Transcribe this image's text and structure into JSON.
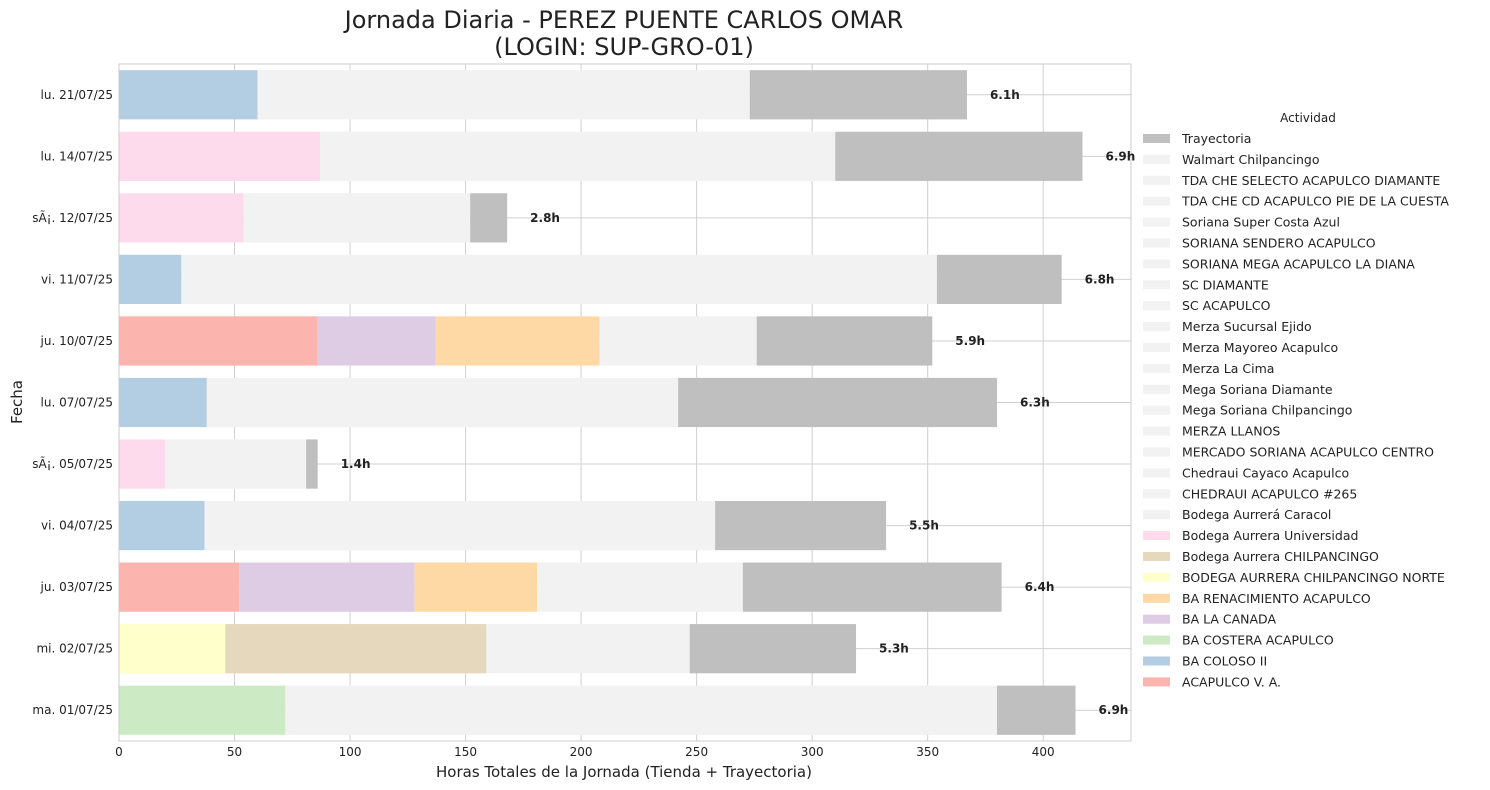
{
  "chart_data": {
    "type": "bar",
    "orientation": "horizontal",
    "stacked": true,
    "title": "Jornada Diaria - PEREZ PUENTE CARLOS OMAR",
    "subtitle": "(LOGIN: SUP-GRO-01)",
    "xlabel": "Horas Totales de la Jornada (Tienda + Trayectoria)",
    "ylabel": "Fecha",
    "xlim": [
      0,
      438
    ],
    "xticks": [
      0,
      50,
      100,
      150,
      200,
      250,
      300,
      350,
      400
    ],
    "grid": true,
    "legend_title": "Actividad",
    "legend_position": "right",
    "categories": [
      "ma. 01/07/25",
      "mi. 02/07/25",
      "ju. 03/07/25",
      "vi. 04/07/25",
      "sÃ¡. 05/07/25",
      "lu. 07/07/25",
      "ju. 10/07/25",
      "vi. 11/07/25",
      "sÃ¡. 12/07/25",
      "lu. 14/07/25",
      "lu. 21/07/25"
    ],
    "totals": [
      "6.9h",
      "5.3h",
      "6.4h",
      "5.5h",
      "1.4h",
      "6.3h",
      "5.9h",
      "6.8h",
      "2.8h",
      "6.9h",
      "6.1h"
    ],
    "segments": [
      [
        {
          "name": "BA COSTERA ACAPULCO",
          "value": 72
        },
        {
          "name": "Walmart Chilpancingo",
          "value": 308
        },
        {
          "name": "Trayectoria",
          "value": 34
        }
      ],
      [
        {
          "name": "BODEGA AURRERA CHILPANCINGO NORTE",
          "value": 46
        },
        {
          "name": "Bodega Aurrera CHILPANCINGO",
          "value": 113
        },
        {
          "name": "Walmart Chilpancingo",
          "value": 88
        },
        {
          "name": "Trayectoria",
          "value": 72
        }
      ],
      [
        {
          "name": "ACAPULCO V. A.",
          "value": 52
        },
        {
          "name": "BA LA CANADA",
          "value": 76
        },
        {
          "name": "BA RENACIMIENTO ACAPULCO",
          "value": 53
        },
        {
          "name": "Walmart Chilpancingo",
          "value": 89
        },
        {
          "name": "Trayectoria",
          "value": 112
        }
      ],
      [
        {
          "name": "BA COLOSO II",
          "value": 37
        },
        {
          "name": "Walmart Chilpancingo",
          "value": 221
        },
        {
          "name": "Trayectoria",
          "value": 74
        }
      ],
      [
        {
          "name": "Bodega Aurrera Universidad",
          "value": 20
        },
        {
          "name": "Walmart Chilpancingo",
          "value": 61
        },
        {
          "name": "Trayectoria",
          "value": 5
        }
      ],
      [
        {
          "name": "BA COLOSO II",
          "value": 38
        },
        {
          "name": "Walmart Chilpancingo",
          "value": 204
        },
        {
          "name": "Trayectoria",
          "value": 138
        }
      ],
      [
        {
          "name": "ACAPULCO V. A.",
          "value": 86
        },
        {
          "name": "BA LA CANADA",
          "value": 51
        },
        {
          "name": "BA RENACIMIENTO ACAPULCO",
          "value": 71
        },
        {
          "name": "Walmart Chilpancingo",
          "value": 68
        },
        {
          "name": "Trayectoria",
          "value": 76
        }
      ],
      [
        {
          "name": "BA COLOSO II",
          "value": 27
        },
        {
          "name": "Walmart Chilpancingo",
          "value": 327
        },
        {
          "name": "Trayectoria",
          "value": 54
        }
      ],
      [
        {
          "name": "Bodega Aurrera Universidad",
          "value": 54
        },
        {
          "name": "Walmart Chilpancingo",
          "value": 98
        },
        {
          "name": "Trayectoria",
          "value": 16
        }
      ],
      [
        {
          "name": "Bodega Aurrera Universidad",
          "value": 87
        },
        {
          "name": "Walmart Chilpancingo",
          "value": 223
        },
        {
          "name": "Trayectoria",
          "value": 107
        }
      ],
      [
        {
          "name": "BA COLOSO II",
          "value": 60
        },
        {
          "name": "Walmart Chilpancingo",
          "value": 213
        },
        {
          "name": "Trayectoria",
          "value": 94
        }
      ]
    ],
    "legend": [
      {
        "name": "Trayectoria",
        "color": "#bfbfbf"
      },
      {
        "name": "Walmart Chilpancingo",
        "color": "#f2f2f2"
      },
      {
        "name": "TDA CHE SELECTO ACAPULCO DIAMANTE",
        "color": "#f2f2f2"
      },
      {
        "name": "TDA CHE CD ACAPULCO PIE DE LA CUESTA",
        "color": "#f2f2f2"
      },
      {
        "name": "Soriana Super Costa Azul",
        "color": "#f2f2f2"
      },
      {
        "name": "SORIANA SENDERO ACAPULCO",
        "color": "#f2f2f2"
      },
      {
        "name": "SORIANA MEGA ACAPULCO LA DIANA",
        "color": "#f2f2f2"
      },
      {
        "name": "SC DIAMANTE",
        "color": "#f2f2f2"
      },
      {
        "name": "SC ACAPULCO",
        "color": "#f2f2f2"
      },
      {
        "name": "Merza Sucursal Ejido",
        "color": "#f2f2f2"
      },
      {
        "name": "Merza Mayoreo Acapulco",
        "color": "#f2f2f2"
      },
      {
        "name": "Merza La Cima",
        "color": "#f2f2f2"
      },
      {
        "name": "Mega Soriana Diamante",
        "color": "#f2f2f2"
      },
      {
        "name": "Mega Soriana Chilpancingo",
        "color": "#f2f2f2"
      },
      {
        "name": "MERZA LLANOS",
        "color": "#f2f2f2"
      },
      {
        "name": "MERCADO SORIANA ACAPULCO CENTRO",
        "color": "#f2f2f2"
      },
      {
        "name": "Chedraui Cayaco Acapulco",
        "color": "#f2f2f2"
      },
      {
        "name": "CHEDRAUI ACAPULCO #265",
        "color": "#f2f2f2"
      },
      {
        "name": "Bodega Aurrerá Caracol",
        "color": "#f2f2f2"
      },
      {
        "name": "Bodega Aurrera Universidad",
        "color": "#fddaec"
      },
      {
        "name": "Bodega Aurrera CHILPANCINGO",
        "color": "#e5d8bd"
      },
      {
        "name": "BODEGA AURRERA CHILPANCINGO NORTE",
        "color": "#ffffcc"
      },
      {
        "name": "BA RENACIMIENTO ACAPULCO",
        "color": "#fed9a6"
      },
      {
        "name": "BA LA CANADA",
        "color": "#decbe4"
      },
      {
        "name": "BA COSTERA ACAPULCO",
        "color": "#ccebc5"
      },
      {
        "name": "BA COLOSO II",
        "color": "#b3cde3"
      },
      {
        "name": "ACAPULCO V. A.",
        "color": "#fbb4ae"
      }
    ]
  }
}
